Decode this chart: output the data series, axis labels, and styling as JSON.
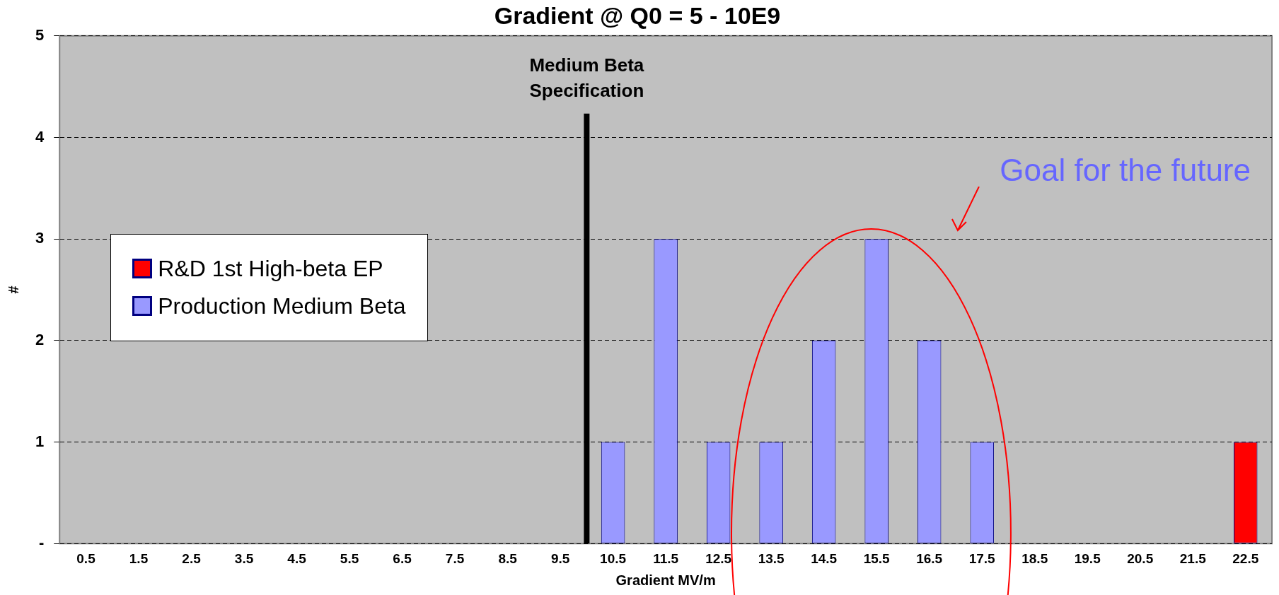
{
  "chart_data": {
    "type": "bar",
    "title": "Gradient @ Q0 = 5 - 10E9",
    "xlabel": "Gradient MV/m",
    "ylabel": "#",
    "xlim": [
      0,
      23
    ],
    "xticks": [
      0.5,
      1.5,
      2.5,
      3.5,
      4.5,
      5.5,
      6.5,
      7.5,
      8.5,
      9.5,
      10.5,
      11.5,
      12.5,
      13.5,
      14.5,
      15.5,
      16.5,
      17.5,
      18.5,
      19.5,
      20.5,
      21.5,
      22.5
    ],
    "series": [
      {
        "name": "R&D 1st High-beta EP",
        "color": "#ff0000",
        "x": [
          22.5
        ],
        "values": [
          1
        ]
      },
      {
        "name": "Production Medium Beta",
        "color": "#9999ff",
        "x": [
          10.5,
          11.5,
          12.5,
          13.5,
          14.5,
          15.5,
          16.5,
          17.5
        ],
        "values": [
          1,
          3,
          1,
          1,
          2,
          3,
          2,
          1
        ]
      }
    ],
    "ylim": [
      0,
      5
    ],
    "yticks": [
      {
        "value": 0,
        "label": "-"
      },
      1,
      2,
      3,
      4,
      5
    ],
    "grid": "y",
    "legend": "left",
    "ref_lines": [
      {
        "axis": "x",
        "value": 10,
        "label": "Medium Beta Specification",
        "color": "#000000"
      }
    ],
    "annotations": [
      "Goal for the future"
    ]
  }
}
